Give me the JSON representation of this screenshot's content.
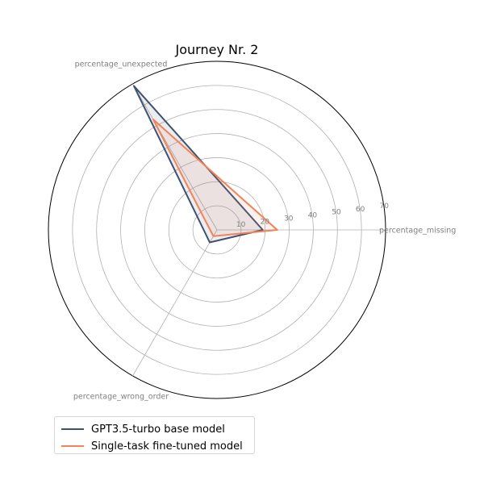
{
  "chart_data": {
    "type": "radar",
    "title": "Journey Nr. 2",
    "axes": [
      "percentage_missing",
      "percentage_unexpected",
      "percentage_wrong_order"
    ],
    "rlim": [
      0,
      70
    ],
    "rticks": [
      "10",
      "20",
      "30",
      "40",
      "50",
      "60",
      "70"
    ],
    "grid": true,
    "legend_position": "bottom-left",
    "series": [
      {
        "name": "GPT3.5-turbo base model",
        "color": "#3d5271",
        "values": [
          19,
          69,
          6
        ]
      },
      {
        "name": "Single-task fine-tuned model",
        "color": "#f28257",
        "values": [
          25,
          53,
          3
        ]
      }
    ]
  }
}
